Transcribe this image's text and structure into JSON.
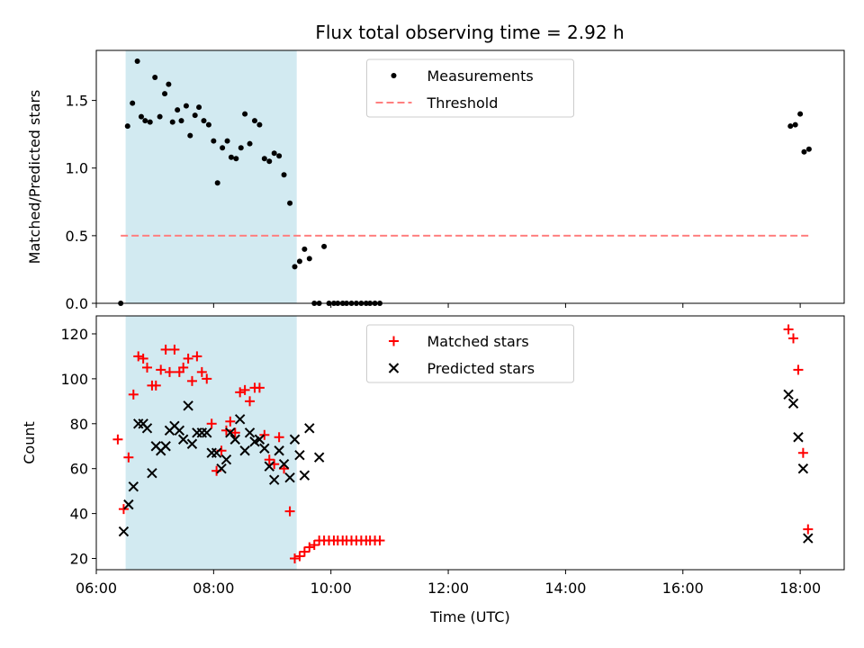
{
  "title": "Flux total observing time = 2.92 h",
  "chart_data": [
    {
      "type": "scatter",
      "panel": "top",
      "ylabel": "Matched/Predicted stars",
      "xlabel": "",
      "xlim": [
        "06:00",
        "18:45"
      ],
      "ylim": [
        0,
        1.87
      ],
      "yticks": [
        0.0,
        0.5,
        1.0,
        1.5
      ],
      "ytick_labels": [
        "0.0",
        "0.5",
        "1.0",
        "1.5"
      ],
      "shaded_span": {
        "from": "06:30",
        "to": "09:25",
        "color": "#add8e6"
      },
      "legend": {
        "placement": "upper center",
        "entries": [
          "Measurements",
          "Threshold"
        ]
      },
      "series": [
        {
          "name": "Measurements",
          "marker": "dot",
          "color": "#000000",
          "points": [
            [
              "06:25",
              0.0
            ],
            [
              "06:32",
              1.31
            ],
            [
              "06:37",
              1.48
            ],
            [
              "06:42",
              1.79
            ],
            [
              "06:46",
              1.38
            ],
            [
              "06:50",
              1.35
            ],
            [
              "06:55",
              1.34
            ],
            [
              "07:00",
              1.67
            ],
            [
              "07:05",
              1.38
            ],
            [
              "07:10",
              1.55
            ],
            [
              "07:14",
              1.62
            ],
            [
              "07:18",
              1.34
            ],
            [
              "07:23",
              1.43
            ],
            [
              "07:27",
              1.35
            ],
            [
              "07:32",
              1.46
            ],
            [
              "07:36",
              1.24
            ],
            [
              "07:41",
              1.39
            ],
            [
              "07:45",
              1.45
            ],
            [
              "07:50",
              1.35
            ],
            [
              "07:55",
              1.32
            ],
            [
              "08:00",
              1.2
            ],
            [
              "08:04",
              0.89
            ],
            [
              "08:09",
              1.15
            ],
            [
              "08:14",
              1.2
            ],
            [
              "08:18",
              1.08
            ],
            [
              "08:23",
              1.07
            ],
            [
              "08:28",
              1.15
            ],
            [
              "08:32",
              1.4
            ],
            [
              "08:37",
              1.18
            ],
            [
              "08:42",
              1.35
            ],
            [
              "08:47",
              1.32
            ],
            [
              "08:52",
              1.07
            ],
            [
              "08:57",
              1.05
            ],
            [
              "09:02",
              1.11
            ],
            [
              "09:07",
              1.09
            ],
            [
              "09:12",
              0.95
            ],
            [
              "09:18",
              0.74
            ],
            [
              "09:23",
              0.27
            ],
            [
              "09:28",
              0.31
            ],
            [
              "09:33",
              0.4
            ],
            [
              "09:38",
              0.33
            ],
            [
              "09:43",
              0.0
            ],
            [
              "09:48",
              0.0
            ],
            [
              "09:53",
              0.42
            ],
            [
              "09:58",
              0.0
            ],
            [
              "10:03",
              0.0
            ],
            [
              "10:07",
              0.0
            ],
            [
              "10:12",
              0.0
            ],
            [
              "10:16",
              0.0
            ],
            [
              "10:21",
              0.0
            ],
            [
              "10:26",
              0.0
            ],
            [
              "10:31",
              0.0
            ],
            [
              "10:36",
              0.0
            ],
            [
              "10:40",
              0.0
            ],
            [
              "10:45",
              0.0
            ],
            [
              "10:50",
              0.0
            ],
            [
              "17:50",
              1.31
            ],
            [
              "17:55",
              1.32
            ],
            [
              "18:00",
              1.4
            ],
            [
              "18:04",
              1.12
            ],
            [
              "18:09",
              1.14
            ]
          ]
        },
        {
          "name": "Threshold",
          "marker": "dashed-line",
          "color": "#ff7f7f",
          "points": [
            [
              "06:25",
              0.5
            ],
            [
              "18:10",
              0.5
            ]
          ]
        }
      ]
    },
    {
      "type": "scatter",
      "panel": "bottom",
      "ylabel": "Count",
      "xlabel": "Time (UTC)",
      "xlim": [
        "06:00",
        "18:45"
      ],
      "ylim": [
        15,
        128
      ],
      "yticks": [
        20,
        40,
        60,
        80,
        100,
        120
      ],
      "xticks": [
        "06:00",
        "08:00",
        "10:00",
        "12:00",
        "14:00",
        "16:00",
        "18:00"
      ],
      "shaded_span": {
        "from": "06:30",
        "to": "09:25",
        "color": "#add8e6"
      },
      "legend": {
        "placement": "upper center",
        "entries": [
          "Matched stars",
          "Predicted stars"
        ]
      },
      "series": [
        {
          "name": "Matched stars",
          "marker": "plus",
          "color": "#ff0000",
          "points": [
            [
              "06:22",
              73
            ],
            [
              "06:28",
              42
            ],
            [
              "06:33",
              65
            ],
            [
              "06:38",
              93
            ],
            [
              "06:43",
              110
            ],
            [
              "06:48",
              109
            ],
            [
              "06:52",
              105
            ],
            [
              "06:57",
              97
            ],
            [
              "07:01",
              97
            ],
            [
              "07:06",
              104
            ],
            [
              "07:11",
              113
            ],
            [
              "07:15",
              103
            ],
            [
              "07:20",
              113
            ],
            [
              "07:25",
              103
            ],
            [
              "07:29",
              105
            ],
            [
              "07:34",
              109
            ],
            [
              "07:38",
              99
            ],
            [
              "07:43",
              110
            ],
            [
              "07:48",
              103
            ],
            [
              "07:53",
              100
            ],
            [
              "07:58",
              80
            ],
            [
              "08:03",
              59
            ],
            [
              "08:08",
              68
            ],
            [
              "08:13",
              77
            ],
            [
              "08:17",
              81
            ],
            [
              "08:22",
              76
            ],
            [
              "08:27",
              94
            ],
            [
              "08:32",
              95
            ],
            [
              "08:37",
              90
            ],
            [
              "08:42",
              96
            ],
            [
              "08:47",
              96
            ],
            [
              "08:52",
              75
            ],
            [
              "08:57",
              64
            ],
            [
              "09:02",
              62
            ],
            [
              "09:07",
              74
            ],
            [
              "09:12",
              60
            ],
            [
              "09:18",
              41
            ],
            [
              "09:23",
              20
            ],
            [
              "09:28",
              21
            ],
            [
              "09:33",
              23
            ],
            [
              "09:38",
              25
            ],
            [
              "09:43",
              26
            ],
            [
              "09:48",
              28
            ],
            [
              "09:53",
              28
            ],
            [
              "09:58",
              28
            ],
            [
              "10:03",
              28
            ],
            [
              "10:07",
              28
            ],
            [
              "10:12",
              28
            ],
            [
              "10:16",
              28
            ],
            [
              "10:21",
              28
            ],
            [
              "10:26",
              28
            ],
            [
              "10:31",
              28
            ],
            [
              "10:36",
              28
            ],
            [
              "10:40",
              28
            ],
            [
              "10:45",
              28
            ],
            [
              "10:50",
              28
            ],
            [
              "17:48",
              122
            ],
            [
              "17:53",
              118
            ],
            [
              "17:58",
              104
            ],
            [
              "18:03",
              67
            ],
            [
              "18:08",
              33
            ]
          ]
        },
        {
          "name": "Predicted stars",
          "marker": "x",
          "color": "#000000",
          "points": [
            [
              "06:28",
              32
            ],
            [
              "06:33",
              44
            ],
            [
              "06:38",
              52
            ],
            [
              "06:43",
              80
            ],
            [
              "06:48",
              80
            ],
            [
              "06:52",
              78
            ],
            [
              "06:57",
              58
            ],
            [
              "07:01",
              70
            ],
            [
              "07:06",
              68
            ],
            [
              "07:11",
              70
            ],
            [
              "07:15",
              77
            ],
            [
              "07:20",
              79
            ],
            [
              "07:25",
              77
            ],
            [
              "07:29",
              73
            ],
            [
              "07:34",
              88
            ],
            [
              "07:38",
              71
            ],
            [
              "07:43",
              76
            ],
            [
              "07:48",
              76
            ],
            [
              "07:53",
              76
            ],
            [
              "07:58",
              67
            ],
            [
              "08:03",
              67
            ],
            [
              "08:08",
              60
            ],
            [
              "08:13",
              64
            ],
            [
              "08:17",
              76
            ],
            [
              "08:22",
              73
            ],
            [
              "08:27",
              82
            ],
            [
              "08:32",
              68
            ],
            [
              "08:37",
              76
            ],
            [
              "08:42",
              72
            ],
            [
              "08:47",
              73
            ],
            [
              "08:52",
              69
            ],
            [
              "08:57",
              61
            ],
            [
              "09:02",
              55
            ],
            [
              "09:07",
              68
            ],
            [
              "09:12",
              62
            ],
            [
              "09:18",
              56
            ],
            [
              "09:23",
              73
            ],
            [
              "09:28",
              66
            ],
            [
              "09:33",
              57
            ],
            [
              "09:38",
              78
            ],
            [
              "09:48",
              65
            ],
            [
              "17:48",
              93
            ],
            [
              "17:53",
              89
            ],
            [
              "17:58",
              74
            ],
            [
              "18:03",
              60
            ],
            [
              "18:08",
              29
            ]
          ]
        }
      ]
    }
  ]
}
